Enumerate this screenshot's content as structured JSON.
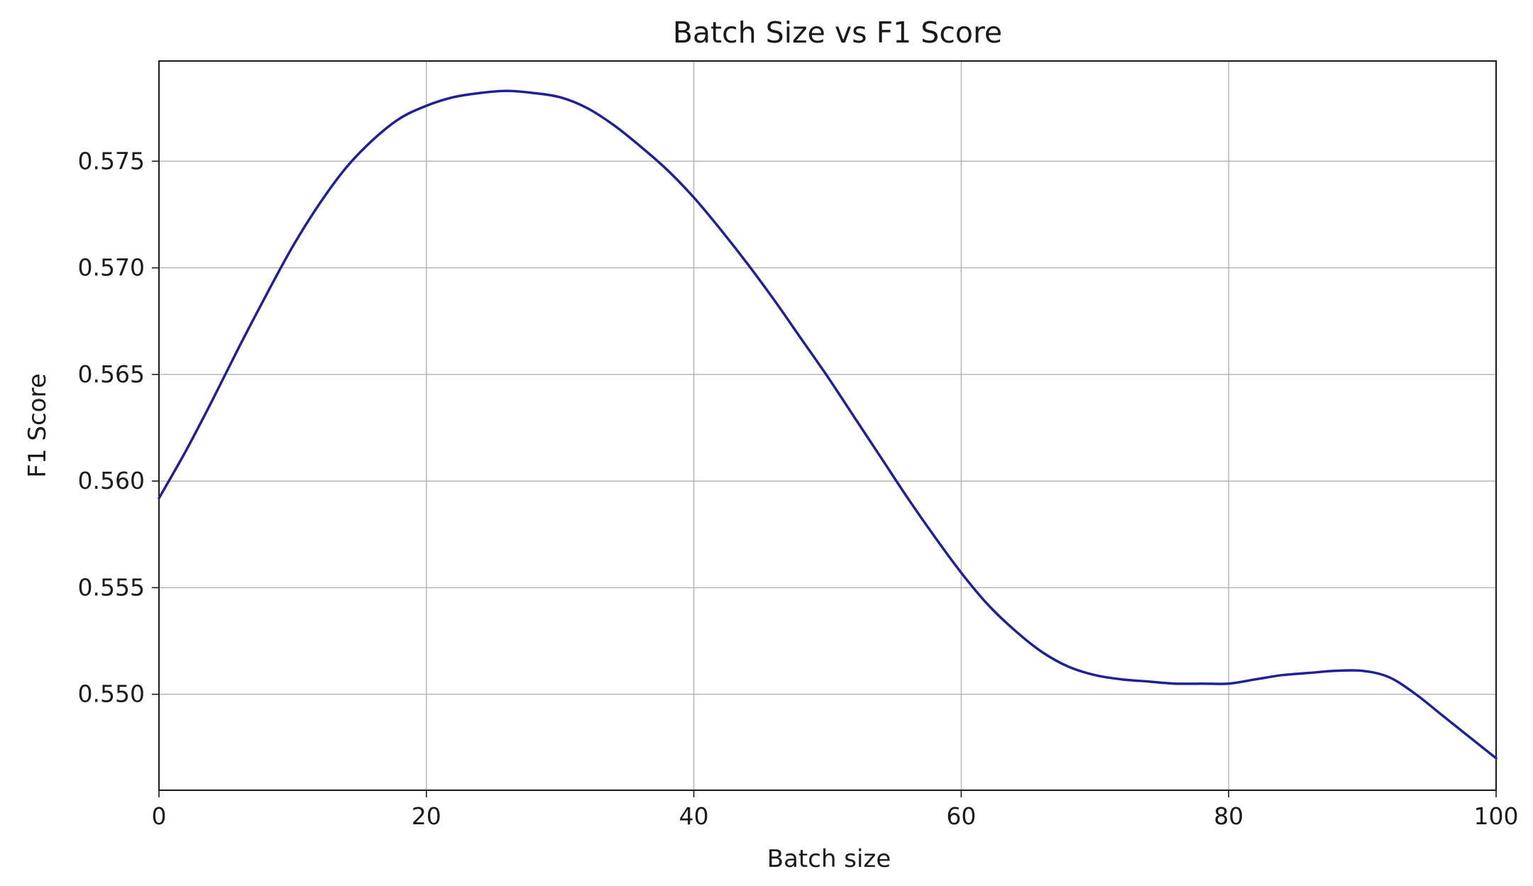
{
  "chart_data": {
    "type": "line",
    "title": "Batch Size vs F1 Score",
    "xlabel": "Batch size",
    "ylabel": "F1 Score",
    "xlim": [
      0,
      100
    ],
    "ylim": [
      0.5455,
      0.5797
    ],
    "xticks": [
      0,
      20,
      40,
      60,
      80,
      100
    ],
    "xtick_labels": [
      "0",
      "20",
      "40",
      "60",
      "80",
      "100"
    ],
    "yticks": [
      0.55,
      0.555,
      0.56,
      0.565,
      0.57,
      0.575
    ],
    "ytick_labels": [
      "0.550",
      "0.555",
      "0.560",
      "0.565",
      "0.570",
      "0.575"
    ],
    "grid": true,
    "legend": false,
    "line_color": "#1f1f9a",
    "series": [
      {
        "x": [
          0,
          2,
          4,
          6,
          8,
          10,
          12,
          14,
          16,
          18,
          20,
          22,
          24,
          26,
          28,
          30,
          32,
          34,
          36,
          38,
          40,
          42,
          44,
          46,
          48,
          50,
          52,
          54,
          56,
          58,
          60,
          62,
          64,
          66,
          68,
          70,
          72,
          74,
          76,
          78,
          80,
          82,
          84,
          86,
          88,
          90,
          92,
          94,
          96,
          98,
          100
        ],
        "y": [
          0.5592,
          0.5614,
          0.5638,
          0.5663,
          0.5687,
          0.571,
          0.573,
          0.5747,
          0.576,
          0.577,
          0.5776,
          0.578,
          0.5782,
          0.5783,
          0.5782,
          0.578,
          0.5775,
          0.5767,
          0.5757,
          0.5746,
          0.5733,
          0.5718,
          0.5702,
          0.5685,
          0.5667,
          0.5649,
          0.563,
          0.5611,
          0.5592,
          0.5574,
          0.5557,
          0.5542,
          0.553,
          0.552,
          0.5513,
          0.5509,
          0.5507,
          0.5506,
          0.5505,
          0.5505,
          0.5505,
          0.5507,
          0.5509,
          0.551,
          0.5511,
          0.5511,
          0.5508,
          0.55,
          0.549,
          0.548,
          0.547
        ]
      }
    ]
  }
}
